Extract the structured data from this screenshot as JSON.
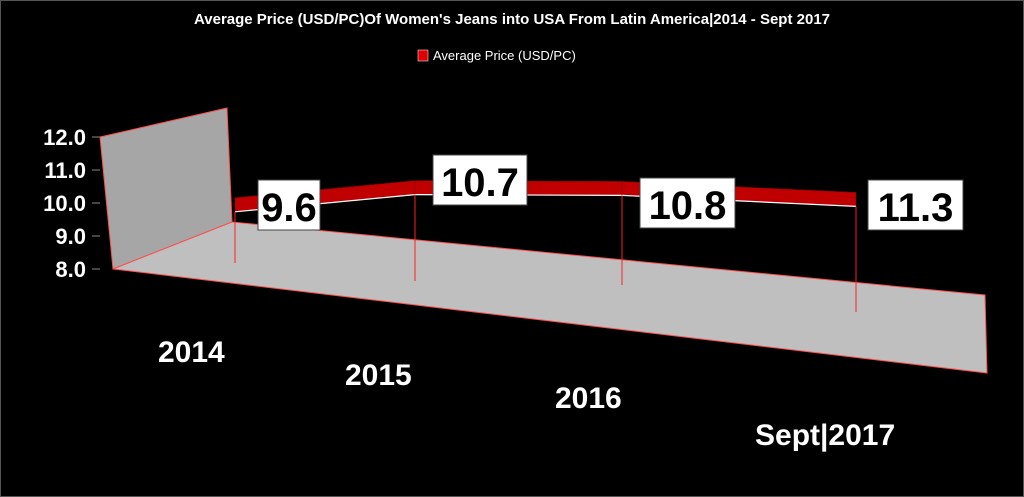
{
  "chart_data": {
    "type": "line",
    "subtype": "3d-ribbon",
    "title": "Average Price (USD/PC)Of Women's Jeans into USA From Latin America|2014 - Sept 2017",
    "legend": {
      "entries": [
        "Average Price (USD/PC)"
      ],
      "placement": "top"
    },
    "categories": [
      "2014",
      "2015",
      "2016",
      "Sept|2017"
    ],
    "series": [
      {
        "name": "Average Price (USD/PC)",
        "values": [
          9.6,
          10.7,
          10.8,
          11.3
        ]
      }
    ],
    "data_labels": [
      "9.6",
      "10.7",
      "10.8",
      "11.3"
    ],
    "yticks": [
      "12.0",
      "11.0",
      "10.0",
      "9.0",
      "8.0"
    ],
    "ylim": [
      8,
      12
    ],
    "xlabel": "",
    "ylabel": "",
    "colors": {
      "series": "#c00000",
      "wall": "#a6a6a6",
      "floor": "#bfbfbf",
      "edge": "#ff4d4d",
      "background": "#000000"
    }
  }
}
